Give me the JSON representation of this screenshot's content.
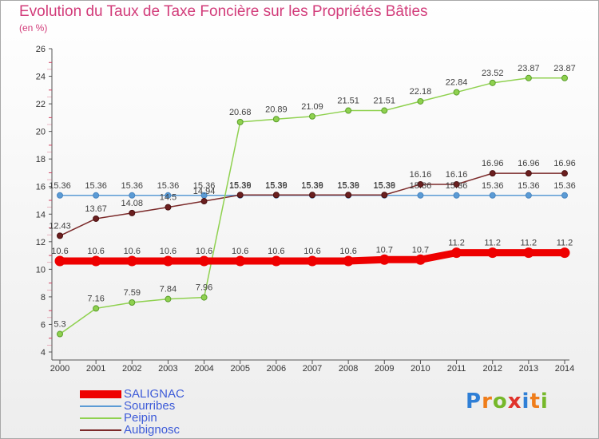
{
  "title": "Evolution du Taux de Taxe Foncière sur les Propriétés Bâties",
  "subtitle": "(en %)",
  "logo": {
    "letters": [
      "P",
      "r",
      "o",
      "x",
      "i",
      "t",
      "i"
    ],
    "colors": [
      "#2f7fd6",
      "#ef7d1a",
      "#76b82a",
      "#e0322b",
      "#2f7fd6",
      "#ef7d1a",
      "#76b82a"
    ]
  },
  "chart_data": {
    "type": "line",
    "title": "Evolution du Taux de Taxe Foncière sur les Propriétés Bâties",
    "ylabel": "(en %)",
    "ylim": [
      4,
      26
    ],
    "yticks": [
      4,
      6,
      8,
      10,
      12,
      14,
      16,
      18,
      20,
      22,
      24,
      26
    ],
    "grid": false,
    "legend_position": "bottom-left",
    "x": [
      2000,
      2001,
      2002,
      2003,
      2004,
      2005,
      2006,
      2007,
      2008,
      2009,
      2010,
      2011,
      2012,
      2013,
      2014
    ],
    "series": [
      {
        "name": "SALIGNAC",
        "color": "#ee0000",
        "values": [
          10.6,
          10.6,
          10.6,
          10.6,
          10.6,
          10.6,
          10.6,
          10.6,
          10.6,
          10.7,
          10.7,
          11.2,
          11.2,
          11.2,
          11.2
        ],
        "labels": [
          "10.6",
          "10.6",
          "10.6",
          "10.6",
          "10.6",
          "10.6",
          "10.6",
          "10.6",
          "10.6",
          "10.7",
          "10.7",
          "11.2",
          "11.2",
          "11.2",
          "11.2"
        ]
      },
      {
        "name": "Sourribes",
        "color": "#5b9bd5",
        "values": [
          15.36,
          15.36,
          15.36,
          15.36,
          15.36,
          15.36,
          15.36,
          15.36,
          15.36,
          15.36,
          15.36,
          15.36,
          15.36,
          15.36,
          15.36
        ],
        "labels": [
          "15.36",
          "15.36",
          "15.36",
          "15.36",
          "15.36",
          "15.36",
          "15.36",
          "15.36",
          "15.36",
          "15.36",
          "15.36",
          "15.36",
          "15.36",
          "15.36",
          "15.36"
        ]
      },
      {
        "name": "Peipin",
        "color": "#8fd14f",
        "values": [
          5.3,
          7.16,
          7.59,
          7.84,
          7.96,
          20.68,
          20.89,
          21.09,
          21.51,
          21.51,
          22.18,
          22.84,
          23.52,
          23.87,
          23.87
        ],
        "labels": [
          "5.3",
          "7.16",
          "7.59",
          "7.84",
          "7.96",
          "20.68",
          "20.89",
          "21.09",
          "21.51",
          "21.51",
          "22.18",
          "22.84",
          "23.52",
          "23.87",
          "23.87"
        ]
      },
      {
        "name": "Aubignosc",
        "color": "#7b2a2a",
        "values": [
          12.43,
          13.67,
          14.08,
          14.5,
          14.94,
          15.39,
          15.39,
          15.39,
          15.39,
          15.39,
          16.16,
          16.16,
          16.96,
          16.96,
          16.96
        ],
        "labels": [
          "12.43",
          "13.67",
          "14.08",
          "14.5",
          "14.94",
          "15.39",
          "15.39",
          "15.39",
          "15.39",
          "15.39",
          "16.16",
          "16.16",
          "16.96",
          "16.96",
          "16.96"
        ]
      }
    ]
  }
}
